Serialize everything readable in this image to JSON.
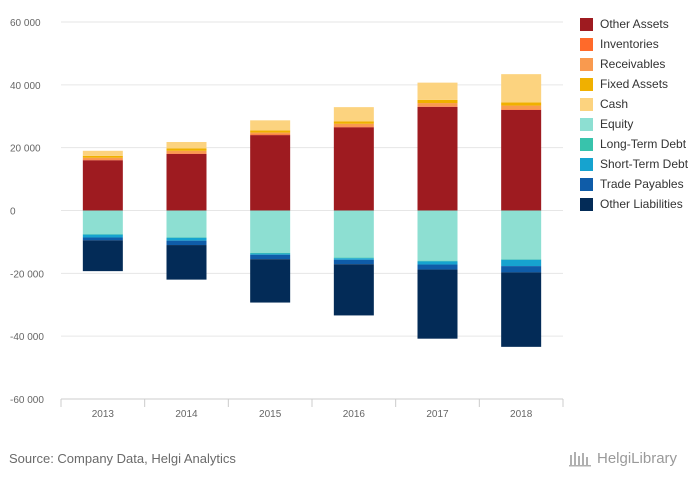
{
  "source": "Source: Company Data, Helgi Analytics",
  "logo_text": "HelgiLibrary",
  "chart_data": {
    "type": "bar",
    "stacked": true,
    "categories": [
      "2013",
      "2014",
      "2015",
      "2016",
      "2017",
      "2018"
    ],
    "ylim": [
      -60000,
      60000
    ],
    "yticks": [
      60000,
      40000,
      20000,
      0,
      -20000,
      -40000,
      -60000
    ],
    "ytick_labels": [
      "60 000",
      "40 000",
      "20 000",
      "0",
      "-20 000",
      "-40 000",
      "-60 000"
    ],
    "grid": true,
    "legend_position": "right",
    "series": [
      {
        "name": "Other Assets",
        "color": "#9e1b20",
        "values": [
          16000,
          18000,
          24000,
          26500,
          33000,
          32000
        ]
      },
      {
        "name": "Inventories",
        "color": "#ff6a2a",
        "values": [
          200,
          200,
          200,
          200,
          200,
          200
        ]
      },
      {
        "name": "Receivables",
        "color": "#f99a4f",
        "values": [
          600,
          800,
          600,
          900,
          1000,
          1200
        ]
      },
      {
        "name": "Fixed Assets",
        "color": "#f0b000",
        "values": [
          600,
          800,
          700,
          800,
          1000,
          1000
        ]
      },
      {
        "name": "Cash",
        "color": "#fcd37f",
        "values": [
          1600,
          2000,
          3200,
          4500,
          5500,
          9000
        ]
      },
      {
        "name": "Equity",
        "color": "#8ddfd2",
        "values": [
          -7500,
          -8500,
          -13500,
          -15000,
          -16000,
          -15500
        ]
      },
      {
        "name": "Long-Term Debt",
        "color": "#38c3ac",
        "values": [
          -200,
          -200,
          -200,
          -200,
          -200,
          -200
        ]
      },
      {
        "name": "Short-Term Debt",
        "color": "#16a3cf",
        "values": [
          -900,
          -900,
          -400,
          -500,
          -1000,
          -2000
        ]
      },
      {
        "name": "Trade Payables",
        "color": "#0f5ca8",
        "values": [
          -900,
          -1400,
          -1400,
          -1400,
          -1600,
          -2000
        ]
      },
      {
        "name": "Other Liabilities",
        "color": "#032b57",
        "values": [
          -9800,
          -11000,
          -13800,
          -16300,
          -22000,
          -23700
        ]
      }
    ]
  }
}
